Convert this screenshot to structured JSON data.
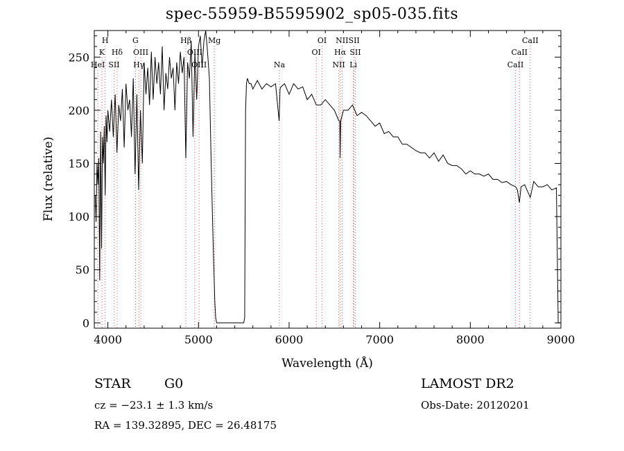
{
  "chart_data": {
    "type": "line",
    "title": "spec-55959-B5595902_sp05-035.fits",
    "xlabel": "Wavelength (Å)",
    "ylabel": "Flux (relative)",
    "xlim": [
      3850,
      9000
    ],
    "ylim": [
      -5,
      275
    ],
    "xticks": [
      4000,
      5000,
      6000,
      7000,
      8000,
      9000
    ],
    "yticks": [
      0,
      50,
      100,
      150,
      200,
      250
    ],
    "grid": false,
    "series": [
      {
        "x": [
          3860,
          3870,
          3880,
          3890,
          3900,
          3910,
          3920,
          3930,
          3940,
          3950,
          3960,
          3970,
          3980,
          3990,
          4000,
          4020,
          4040,
          4060,
          4080,
          4100,
          4120,
          4140,
          4160,
          4180,
          4200,
          4220,
          4240,
          4260,
          4280,
          4300,
          4320,
          4340,
          4360,
          4380,
          4400,
          4420,
          4440,
          4460,
          4480,
          4500,
          4520,
          4540,
          4560,
          4580,
          4600,
          4620,
          4640,
          4660,
          4680,
          4700,
          4720,
          4740,
          4760,
          4780,
          4800,
          4820,
          4840,
          4860,
          4880,
          4900,
          4920,
          4940,
          4960,
          4980,
          5000,
          5020,
          5040,
          5060,
          5080,
          5100,
          5120,
          5140,
          5160,
          5180,
          5190,
          5200,
          5210,
          5500,
          5510,
          5520,
          5530,
          5540,
          5560,
          5580,
          5600,
          5650,
          5700,
          5750,
          5800,
          5850,
          5890,
          5900,
          5910,
          5950,
          6000,
          6050,
          6100,
          6150,
          6200,
          6250,
          6300,
          6350,
          6400,
          6450,
          6500,
          6550,
          6560,
          6563,
          6570,
          6600,
          6650,
          6700,
          6750,
          6800,
          6850,
          6900,
          6950,
          7000,
          7050,
          7100,
          7150,
          7200,
          7250,
          7300,
          7350,
          7400,
          7450,
          7500,
          7550,
          7600,
          7650,
          7700,
          7750,
          7800,
          7850,
          7900,
          7950,
          8000,
          8050,
          8100,
          8150,
          8200,
          8250,
          8300,
          8350,
          8400,
          8450,
          8500,
          8520,
          8542,
          8560,
          8600,
          8662,
          8680,
          8700,
          8750,
          8800,
          8850,
          8900,
          8950,
          8970,
          8980,
          8985,
          8990
        ],
        "values": [
          120,
          95,
          150,
          130,
          155,
          40,
          180,
          70,
          175,
          150,
          185,
          120,
          195,
          170,
          200,
          180,
          210,
          175,
          215,
          160,
          205,
          190,
          220,
          165,
          225,
          200,
          210,
          175,
          230,
          140,
          215,
          125,
          200,
          150,
          245,
          215,
          240,
          205,
          255,
          210,
          250,
          225,
          245,
          215,
          260,
          200,
          235,
          220,
          250,
          230,
          240,
          200,
          245,
          225,
          255,
          235,
          250,
          155,
          245,
          230,
          265,
          175,
          255,
          210,
          260,
          270,
          240,
          265,
          275,
          255,
          230,
          150,
          80,
          20,
          5,
          0,
          0,
          0,
          5,
          200,
          225,
          230,
          225,
          225,
          220,
          228,
          220,
          225,
          222,
          225,
          190,
          220,
          222,
          225,
          215,
          225,
          220,
          222,
          210,
          215,
          205,
          205,
          210,
          205,
          200,
          190,
          190,
          155,
          190,
          200,
          200,
          205,
          195,
          198,
          195,
          190,
          185,
          188,
          178,
          180,
          175,
          175,
          168,
          168,
          165,
          162,
          160,
          160,
          155,
          160,
          152,
          158,
          150,
          148,
          148,
          145,
          140,
          143,
          140,
          140,
          138,
          140,
          135,
          135,
          132,
          133,
          130,
          128,
          125,
          113,
          128,
          130,
          118,
          125,
          133,
          128,
          128,
          130,
          125,
          127,
          0,
          0,
          0,
          0
        ]
      }
    ],
    "line_markers": [
      {
        "name": "H",
        "wavelength": 3970,
        "row": 1
      },
      {
        "name": "K",
        "wavelength": 3934,
        "row": 2
      },
      {
        "name": "HeI",
        "wavelength": 3889,
        "row": 3
      },
      {
        "name": "Hδ",
        "wavelength": 4102,
        "row": 2
      },
      {
        "name": "SII",
        "wavelength": 4068,
        "row": 3
      },
      {
        "name": "G",
        "wavelength": 4305,
        "row": 1
      },
      {
        "name": "OIII",
        "wavelength": 4363,
        "row": 2
      },
      {
        "name": "Hγ",
        "wavelength": 4341,
        "row": 3
      },
      {
        "name": "Hβ",
        "wavelength": 4861,
        "row": 1
      },
      {
        "name": "OIII",
        "wavelength": 4959,
        "row": 2
      },
      {
        "name": "OIII",
        "wavelength": 5007,
        "row": 3
      },
      {
        "name": "Mg",
        "wavelength": 5175,
        "row": 1
      },
      {
        "name": "Na",
        "wavelength": 5893,
        "row": 3
      },
      {
        "name": "OI",
        "wavelength": 6364,
        "row": 1
      },
      {
        "name": "OI",
        "wavelength": 6300,
        "row": 2
      },
      {
        "name": "NII",
        "wavelength": 6548,
        "row": 3
      },
      {
        "name": "NII",
        "wavelength": 6584,
        "row": 1
      },
      {
        "name": "Hα",
        "wavelength": 6563,
        "row": 2
      },
      {
        "name": "SII",
        "wavelength": 6717,
        "row": 1
      },
      {
        "name": "SII",
        "wavelength": 6731,
        "row": 2
      },
      {
        "name": "Li",
        "wavelength": 6708,
        "row": 3
      },
      {
        "name": "CaII",
        "wavelength": 8662,
        "row": 1
      },
      {
        "name": "CaII",
        "wavelength": 8542,
        "row": 2
      },
      {
        "name": "CaII",
        "wavelength": 8498,
        "row": 3
      }
    ]
  },
  "info": {
    "object_class": "STAR",
    "subclass": "G0",
    "survey": "LAMOST DR2",
    "redshift_text": "cz = −23.1 ± 1.3 km/s",
    "obs_date_text": "Obs-Date: 20120201",
    "coords_text": "RA = 139.32895, DEC =  26.48175"
  }
}
